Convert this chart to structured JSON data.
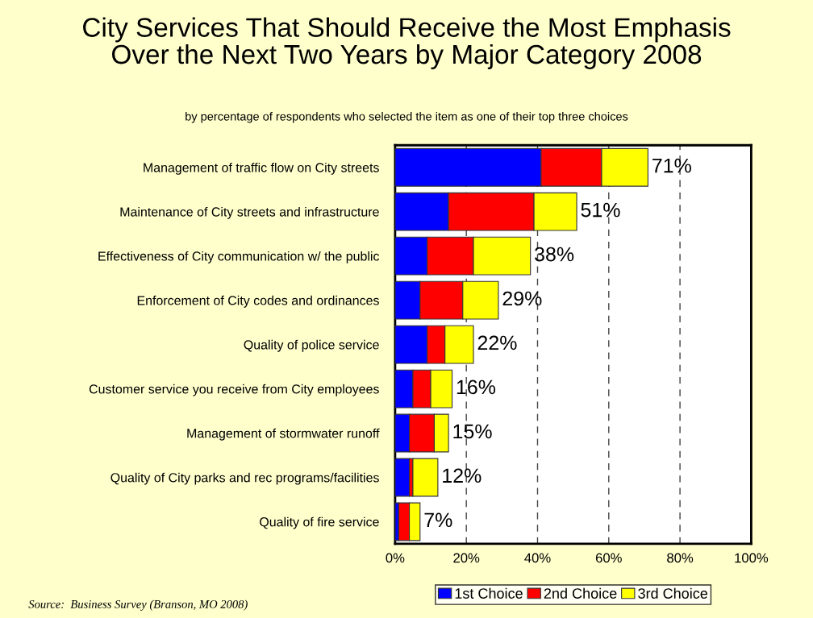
{
  "chart_data": {
    "type": "bar",
    "orientation": "horizontal",
    "stacked": true,
    "title": "City Services That Should Receive the Most Emphasis\nOver the Next Two Years by Major Category 2008",
    "subtitle": "by percentage of respondents who selected the item as one of their top three choices",
    "categories": [
      "Management of traffic flow on City streets",
      "Maintenance of City streets and infrastructure",
      "Effectiveness of City communication w/ the public",
      "Enforcement of City codes and ordinances",
      "Quality of police service",
      "Customer service you receive from City employees",
      "Management of stormwater runoff",
      "Quality of City parks and rec programs/facilities",
      "Quality of fire service"
    ],
    "series": [
      {
        "name": "1st Choice",
        "color": "#0000ff",
        "values": [
          41,
          15,
          9,
          7,
          9,
          5,
          4,
          4,
          1
        ]
      },
      {
        "name": "2nd Choice",
        "color": "#ff0000",
        "values": [
          17,
          24,
          13,
          12,
          5,
          5,
          7,
          1,
          3
        ]
      },
      {
        "name": "3rd Choice",
        "color": "#ffff00",
        "values": [
          13,
          12,
          16,
          10,
          8,
          6,
          4,
          7,
          3
        ]
      }
    ],
    "totals": [
      "71%",
      "51%",
      "38%",
      "29%",
      "22%",
      "16%",
      "15%",
      "12%",
      "7%"
    ],
    "xlim": [
      0,
      100
    ],
    "xticks": [
      {
        "value": 0,
        "label": "0%"
      },
      {
        "value": 20,
        "label": "20%"
      },
      {
        "value": 40,
        "label": "40%"
      },
      {
        "value": 60,
        "label": "60%"
      },
      {
        "value": 80,
        "label": "80%"
      },
      {
        "value": 100,
        "label": "100%"
      }
    ],
    "grid": "x",
    "legend": "bottom",
    "annotations": [
      "Source:  Business Survey (Branson, MO 2008)"
    ]
  }
}
